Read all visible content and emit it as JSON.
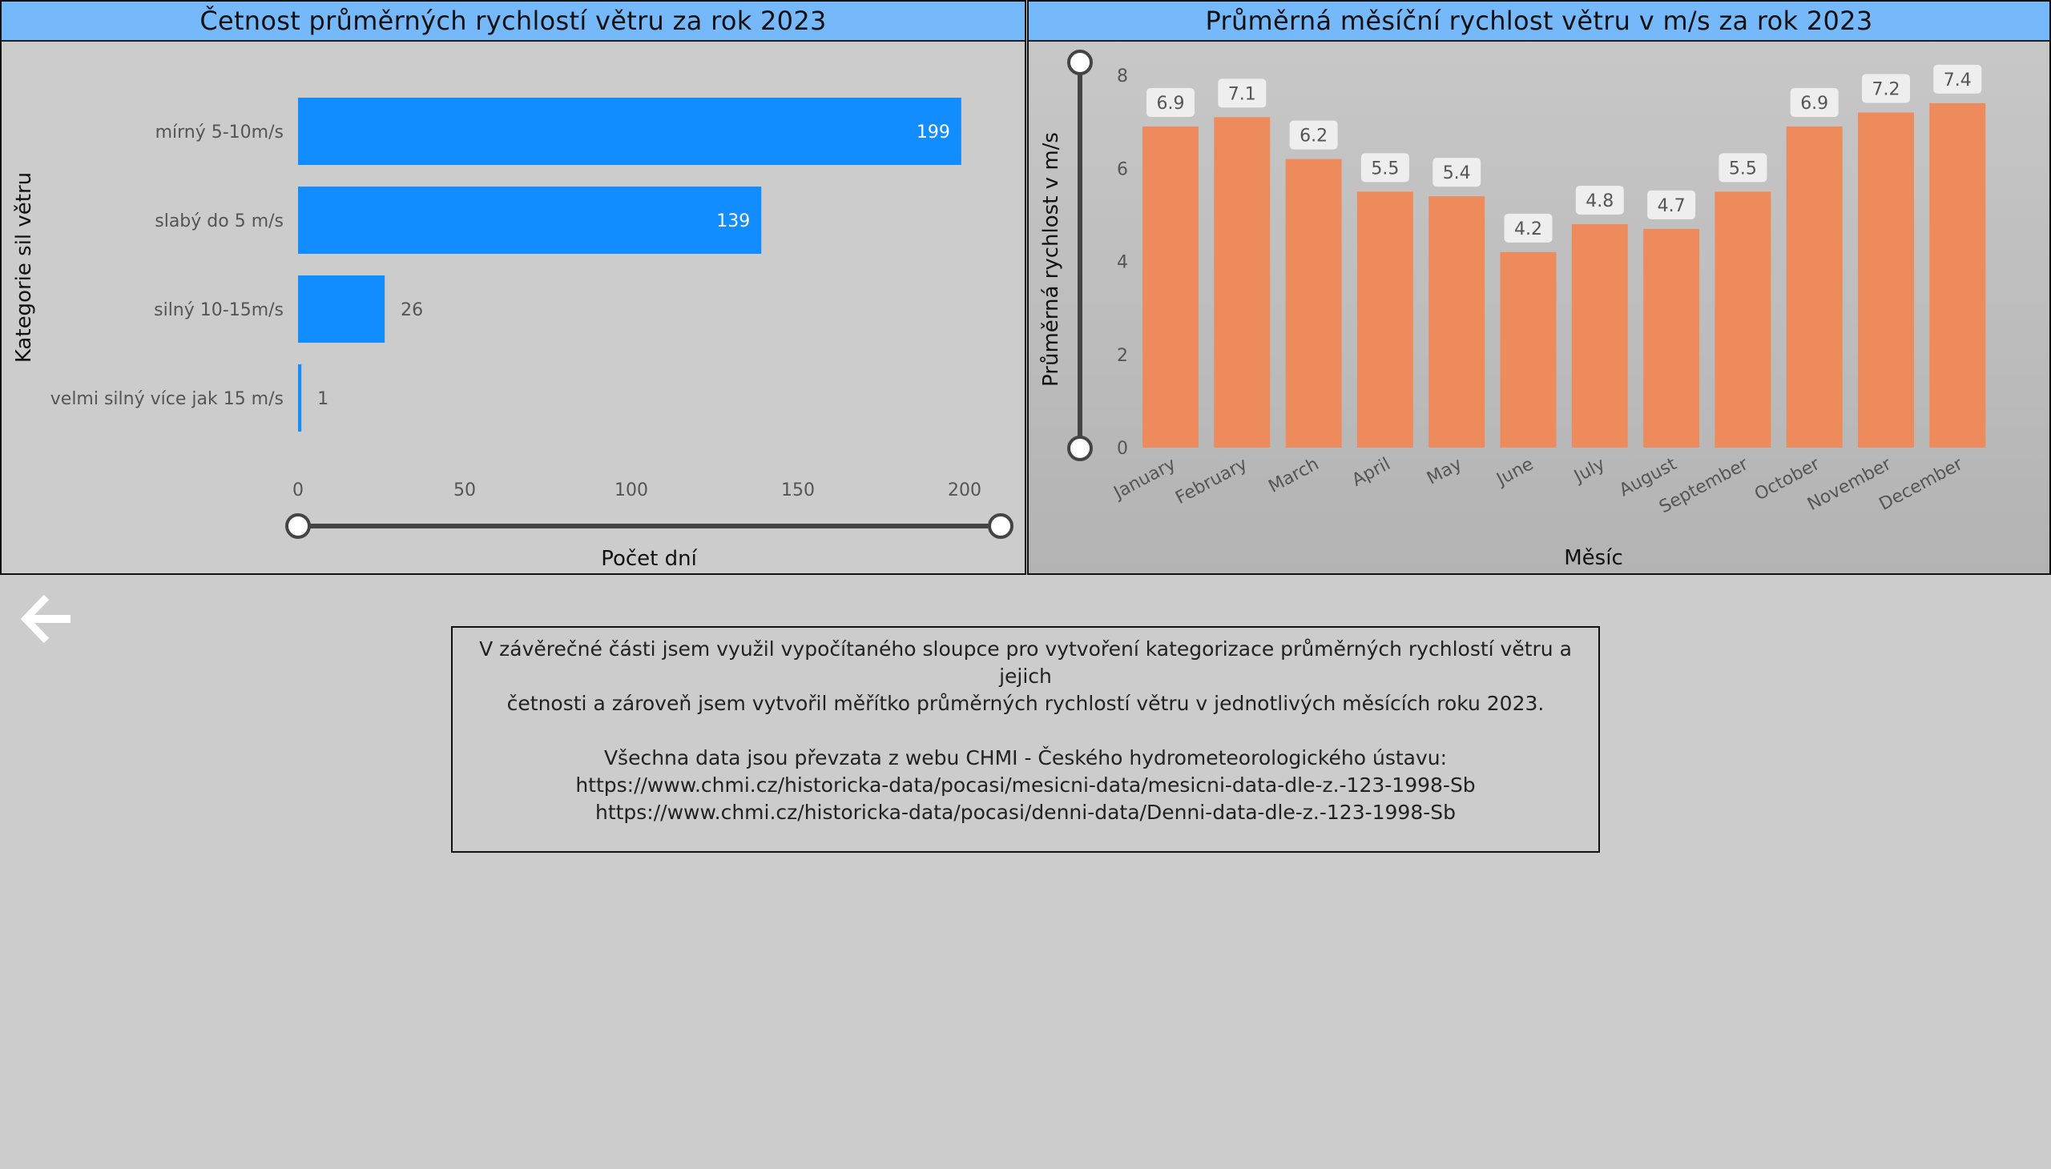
{
  "left_panel": {
    "title": "Četnost průměrných rychlostí větru za rok 2023"
  },
  "right_panel": {
    "title": "Průměrná měsíční rychlost větru v m/s za rok 2023"
  },
  "chart_data": [
    {
      "type": "bar",
      "orientation": "horizontal",
      "title": "Četnost průměrných rychlostí větru za rok 2023",
      "categories": [
        "mírný 5-10m/s",
        "slabý do 5 m/s",
        "silný 10-15m/s",
        "velmi silný více jak 15 m/s"
      ],
      "values": [
        199,
        139,
        26,
        1
      ],
      "xlabel": "Počet dní",
      "ylabel": "Kategorie sil větru",
      "xlim": [
        0,
        200
      ],
      "xticks": [
        0,
        50,
        100,
        150,
        200
      ],
      "bar_color": "#118dff",
      "grid": false,
      "range_slider": true
    },
    {
      "type": "bar",
      "orientation": "vertical",
      "title": "Průměrná měsíční rychlost větru v m/s za rok 2023",
      "categories": [
        "January",
        "February",
        "March",
        "April",
        "May",
        "June",
        "July",
        "August",
        "September",
        "October",
        "November",
        "December"
      ],
      "values": [
        6.9,
        7.1,
        6.2,
        5.5,
        5.4,
        4.2,
        4.8,
        4.7,
        5.5,
        6.9,
        7.2,
        7.4
      ],
      "xlabel": "Měsíc",
      "ylabel": "Průměrná rychlost v m/s",
      "ylim": [
        0,
        8
      ],
      "yticks": [
        0,
        2,
        4,
        6,
        8
      ],
      "bar_color": "#ee8b5d",
      "grid": false,
      "range_slider": true
    }
  ],
  "note": {
    "line1": "V závěrečné části jsem využil vypočítaného sloupce pro vytvoření kategorizace průměrných rychlostí větru a jejich",
    "line2": "četnosti a zároveň jsem vytvořil měřítko průměrných rychlostí větru v jednotlivých měsících roku 2023.",
    "line3": "Všechna data jsou převzata z webu CHMI - Českého hydrometeorologického ústavu:",
    "line4": "https://www.chmi.cz/historicka-data/pocasi/mesicni-data/mesicni-data-dle-z.-123-1998-Sb",
    "line5": "https://www.chmi.cz/historicka-data/pocasi/denni-data/Denni-data-dle-z.-123-1998-Sb"
  },
  "icons": {
    "back": "arrow-left-icon"
  }
}
